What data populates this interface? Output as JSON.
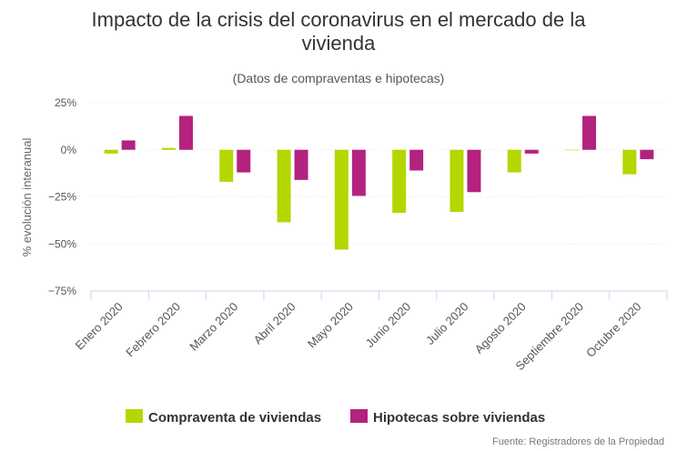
{
  "chart_data": {
    "type": "bar",
    "title_lines": [
      "Impacto de la crisis del coronavirus en el mercado de la",
      "vivienda"
    ],
    "subtitle": "(Datos de compraventas e hipotecas)",
    "ylabel": "% evolución interanual",
    "ylim": [
      -75,
      25
    ],
    "yticks": [
      25,
      0,
      -25,
      -50,
      -75
    ],
    "ytick_labels": [
      "25%",
      "0%",
      "−25%",
      "−50%",
      "−75%"
    ],
    "categories": [
      "Enero 2020",
      "Febrero 2020",
      "Marzo 2020",
      "Abril 2020",
      "Mayo 2020",
      "Junio 2020",
      "Julio 2020",
      "Agosto 2020",
      "Septiembre 2020",
      "Octubre 2020"
    ],
    "series": [
      {
        "name": "Compraventa de viviendas",
        "color": "#b5d600",
        "values": [
          -2,
          1,
          -17,
          -38.5,
          -53,
          -33.5,
          -33,
          -12,
          0,
          -13
        ]
      },
      {
        "name": "Hipotecas sobre viviendas",
        "color": "#b4227f",
        "values": [
          5,
          18,
          -12,
          -16,
          -24.5,
          -11,
          -22.5,
          -2,
          18,
          -5
        ]
      }
    ],
    "grid": true,
    "legend_position": "bottom-center",
    "credits": "Fuente: Registradores de la Propiedad"
  }
}
